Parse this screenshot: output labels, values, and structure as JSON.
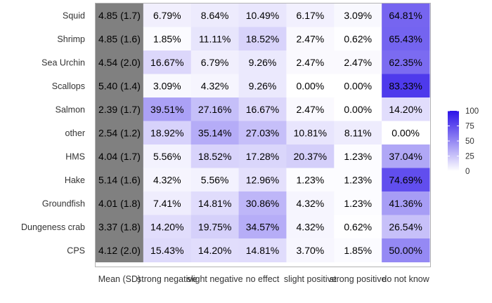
{
  "chart_data": {
    "type": "heatmap",
    "rows": [
      "Squid",
      "Shrimp",
      "Sea Urchin",
      "Scallops",
      "Salmon",
      "other",
      "HMS",
      "Hake",
      "Groundfish",
      "Dungeness crab",
      "CPS"
    ],
    "columns": [
      "Mean (SD)",
      "strong negative",
      "slight negative",
      "no effect",
      "slight positive",
      "strong positive",
      "do not know"
    ],
    "mean_sd": [
      "4.85 (1.7)",
      "4.85 (1.6)",
      "4.54 (2.0)",
      "5.40 (1.4)",
      "2.39 (1.7)",
      "2.54 (1.2)",
      "4.04 (1.7)",
      "5.14 (1.6)",
      "4.01 (1.8)",
      "3.37 (1.8)",
      "4.12 (2.0)"
    ],
    "values": [
      [
        6.79,
        8.64,
        10.49,
        6.17,
        3.09,
        64.81
      ],
      [
        1.85,
        11.11,
        18.52,
        2.47,
        0.62,
        65.43
      ],
      [
        16.67,
        6.79,
        9.26,
        2.47,
        2.47,
        62.35
      ],
      [
        3.09,
        4.32,
        9.26,
        0.0,
        0.0,
        83.33
      ],
      [
        39.51,
        27.16,
        16.67,
        2.47,
        0.0,
        14.2
      ],
      [
        18.92,
        35.14,
        27.03,
        10.81,
        8.11,
        0.0
      ],
      [
        5.56,
        18.52,
        17.28,
        20.37,
        1.23,
        37.04
      ],
      [
        4.32,
        5.56,
        12.96,
        1.23,
        1.23,
        74.69
      ],
      [
        7.41,
        14.81,
        30.86,
        4.32,
        1.23,
        41.36
      ],
      [
        14.2,
        19.75,
        34.57,
        4.32,
        0.62,
        26.54
      ],
      [
        15.43,
        14.2,
        14.81,
        3.7,
        1.85,
        50.0
      ]
    ],
    "labels": [
      [
        "6.79%",
        "8.64%",
        "10.49%",
        "6.17%",
        "3.09%",
        "64.81%"
      ],
      [
        "1.85%",
        "11.11%",
        "18.52%",
        "2.47%",
        "0.62%",
        "65.43%"
      ],
      [
        "16.67%",
        "6.79%",
        "9.26%",
        "2.47%",
        "2.47%",
        "62.35%"
      ],
      [
        "3.09%",
        "4.32%",
        "9.26%",
        "0.00%",
        "0.00%",
        "83.33%"
      ],
      [
        "39.51%",
        "27.16%",
        "16.67%",
        "2.47%",
        "0.00%",
        "14.20%"
      ],
      [
        "18.92%",
        "35.14%",
        "27.03%",
        "10.81%",
        "8.11%",
        "0.00%"
      ],
      [
        "5.56%",
        "18.52%",
        "17.28%",
        "20.37%",
        "1.23%",
        "37.04%"
      ],
      [
        "4.32%",
        "5.56%",
        "12.96%",
        "1.23%",
        "1.23%",
        "74.69%"
      ],
      [
        "7.41%",
        "14.81%",
        "30.86%",
        "4.32%",
        "1.23%",
        "41.36%"
      ],
      [
        "14.20%",
        "19.75%",
        "34.57%",
        "4.32%",
        "0.62%",
        "26.54%"
      ],
      [
        "15.43%",
        "14.20%",
        "14.81%",
        "3.70%",
        "1.85%",
        "50.00%"
      ]
    ],
    "color_scale": {
      "min": 0,
      "max": 100,
      "low_color": "#ffffff",
      "high_color": "#2b12e8",
      "ticks": [
        0,
        25,
        50,
        75,
        100
      ]
    },
    "mean_column_color": "#808080",
    "legend_position": "right",
    "grid": false
  }
}
